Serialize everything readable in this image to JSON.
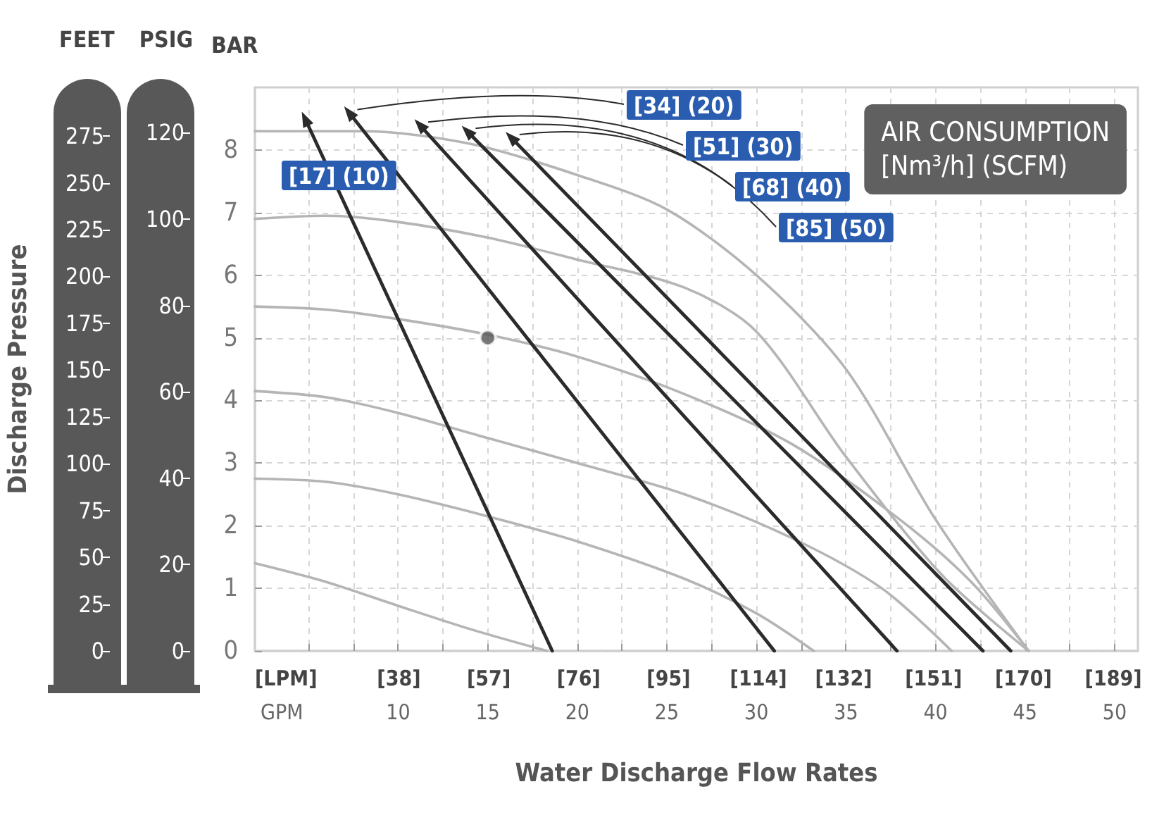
{
  "chart_data": {
    "type": "line",
    "xlabel": "Water Discharge Flow Rates",
    "y2label": "PSIG",
    "y3label": "Discharge Pressure",
    "legend_title": "AIR CONSUMPTION\n[Nm³/h] (SCFM)",
    "annotations": [
      "BAR",
      "[LPM]",
      "GPM",
      "FEET"
    ],
    "xlim": [
      2,
      51.3
    ],
    "xticks": [
      {
        "value": 5,
        "label": null
      },
      {
        "value": 7.5,
        "label": null
      },
      10,
      {
        "value": 12.5,
        "label": null
      },
      15,
      {
        "value": 17.5,
        "label": null
      },
      20,
      {
        "value": 22.5,
        "label": null
      },
      25,
      {
        "value": 27.5,
        "label": null
      },
      30,
      {
        "value": 32.5,
        "label": null
      },
      35,
      {
        "value": 37.5,
        "label": null
      },
      40,
      {
        "value": 42.5,
        "label": null
      },
      45,
      {
        "value": 47.5,
        "label": null
      },
      50
    ],
    "x2lim": [
      7.57,
      194.2
    ],
    "x2ticks": [
      {
        "value": 38,
        "label": "[38]"
      },
      {
        "value": 57,
        "label": "[57]"
      },
      {
        "value": 76,
        "label": "[76]"
      },
      {
        "value": 95,
        "label": "[95]"
      },
      {
        "value": 114,
        "label": "[114]"
      },
      {
        "value": 132,
        "label": "[132]"
      },
      {
        "value": 151,
        "label": "[151]"
      },
      {
        "value": 170,
        "label": "[170]"
      },
      {
        "value": 189,
        "label": "[189]"
      }
    ],
    "ylim": [
      0,
      9
    ],
    "yticks": [
      0,
      1,
      2,
      3,
      4,
      5,
      6,
      7,
      8
    ],
    "y2lim": [
      0,
      130.5
    ],
    "y2ticks": [
      0,
      20,
      40,
      60,
      80,
      100,
      120
    ],
    "y3lim": [
      0,
      301
    ],
    "y3ticks": [
      0,
      25,
      50,
      75,
      100,
      125,
      150,
      175,
      200,
      225,
      250,
      275
    ],
    "grid": true,
    "legend": false,
    "marker": "none",
    "line_style": "solid",
    "series": [
      {
        "color": "#b5b5b5",
        "x": [
          2,
          8,
          14,
          20,
          25,
          30,
          35,
          40,
          45.2
        ],
        "values": [
          8.3,
          8.3,
          8.1,
          7.6,
          7.05,
          6.0,
          4.5,
          2.1,
          0
        ]
      },
      {
        "color": "#b5b5b5",
        "x": [
          2,
          6,
          10,
          15,
          20,
          26,
          30,
          35,
          40.4,
          45.2
        ],
        "values": [
          6.9,
          6.95,
          6.85,
          6.6,
          6.25,
          5.8,
          5.1,
          3.1,
          1.2,
          0
        ]
      },
      {
        "color": "#b5b5b5",
        "x": [
          2,
          6,
          10,
          15,
          20,
          26,
          32,
          38,
          42,
          45.2
        ],
        "values": [
          5.5,
          5.45,
          5.3,
          5.05,
          4.7,
          4.1,
          3.3,
          2.1,
          1.1,
          0
        ]
      },
      {
        "color": "#b5b5b5",
        "x": [
          2,
          6,
          10,
          15,
          20,
          26,
          32,
          37,
          40.9
        ],
        "values": [
          4.15,
          4.05,
          3.8,
          3.4,
          3.0,
          2.5,
          1.8,
          1.0,
          0
        ]
      },
      {
        "color": "#b5b5b5",
        "x": [
          2,
          6,
          10,
          15,
          20,
          26,
          30,
          33.2
        ],
        "values": [
          2.75,
          2.7,
          2.5,
          2.15,
          1.75,
          1.15,
          0.6,
          0
        ]
      },
      {
        "color": "#b5b5b5",
        "x": [
          2,
          6,
          10,
          14,
          18.3
        ],
        "values": [
          1.4,
          1.1,
          0.72,
          0.35,
          0
        ]
      },
      {
        "name": "[17] (10)",
        "color": "#2b2b2b",
        "marker": "triangle",
        "x": [
          18.6,
          4.8
        ],
        "values": [
          0,
          8.5
        ]
      },
      {
        "name": "[34] (20)",
        "color": "#2b2b2b",
        "marker": "triangle",
        "x": [
          31.0,
          7.25
        ],
        "values": [
          0,
          8.6
        ]
      },
      {
        "name": "[51] (30)",
        "color": "#2b2b2b",
        "marker": "triangle",
        "x": [
          37.85,
          11.2
        ],
        "values": [
          0,
          8.4
        ]
      },
      {
        "name": "[68] (40)",
        "color": "#2b2b2b",
        "marker": "triangle",
        "x": [
          42.65,
          13.85
        ],
        "values": [
          0,
          8.3
        ]
      },
      {
        "name": "[85] (50)",
        "color": "#2b2b2b",
        "marker": "triangle",
        "x": [
          44.2,
          16.3
        ],
        "values": [
          0,
          8.2
        ]
      },
      {
        "type": "scatter",
        "color": "#555555",
        "marker": "circle",
        "x": [
          15
        ],
        "values": [
          5
        ]
      }
    ]
  }
}
